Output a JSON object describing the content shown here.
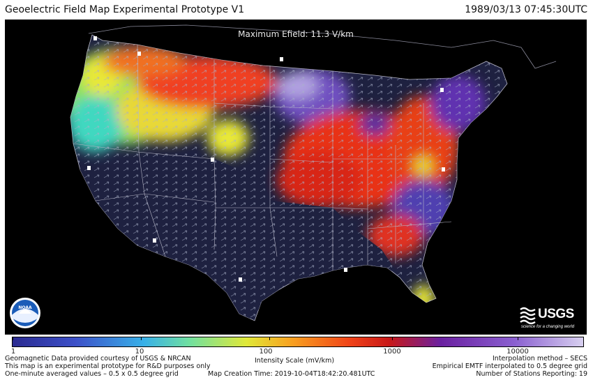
{
  "header": {
    "title": "Geoelectric Field Map Experimental Prototype V1",
    "timestamp": "1989/03/13 07:45:30UTC"
  },
  "map": {
    "max_efield": "Maximum Efield: 11.3 V/km",
    "background_color": "#000000",
    "land_color": "#1e2140",
    "ocean_color": "#000000",
    "border_color": "#b8b8c8"
  },
  "logos": {
    "noaa": "NOAA",
    "usgs": "USGS",
    "usgs_tagline": "science for a changing world"
  },
  "colorbar": {
    "tick_labels": [
      "1",
      "10",
      "100",
      "1000",
      "10000"
    ],
    "scale_label": "Intensity Scale (mV/km)",
    "scale_type": "log",
    "colors": [
      "#2a2a90",
      "#38b0e8",
      "#e0e838",
      "#f04418",
      "#c81818",
      "#6a20a0",
      "#d8d0f0"
    ]
  },
  "footer": {
    "left": [
      "Geomagnetic Data provided courtesy of USGS & NRCAN",
      "This map is an experimental prototype for R&D purposes only",
      "One-minute averaged values – 0.5 x 0.5 degree grid"
    ],
    "center": "Map Creation Time: 2019-10-04T18:42:20.481UTC",
    "right": [
      "Interpolation method – SECS",
      "Empirical EMTF interpolated to 0.5 degree grid",
      "Number of Stations Reporting: 19"
    ]
  }
}
